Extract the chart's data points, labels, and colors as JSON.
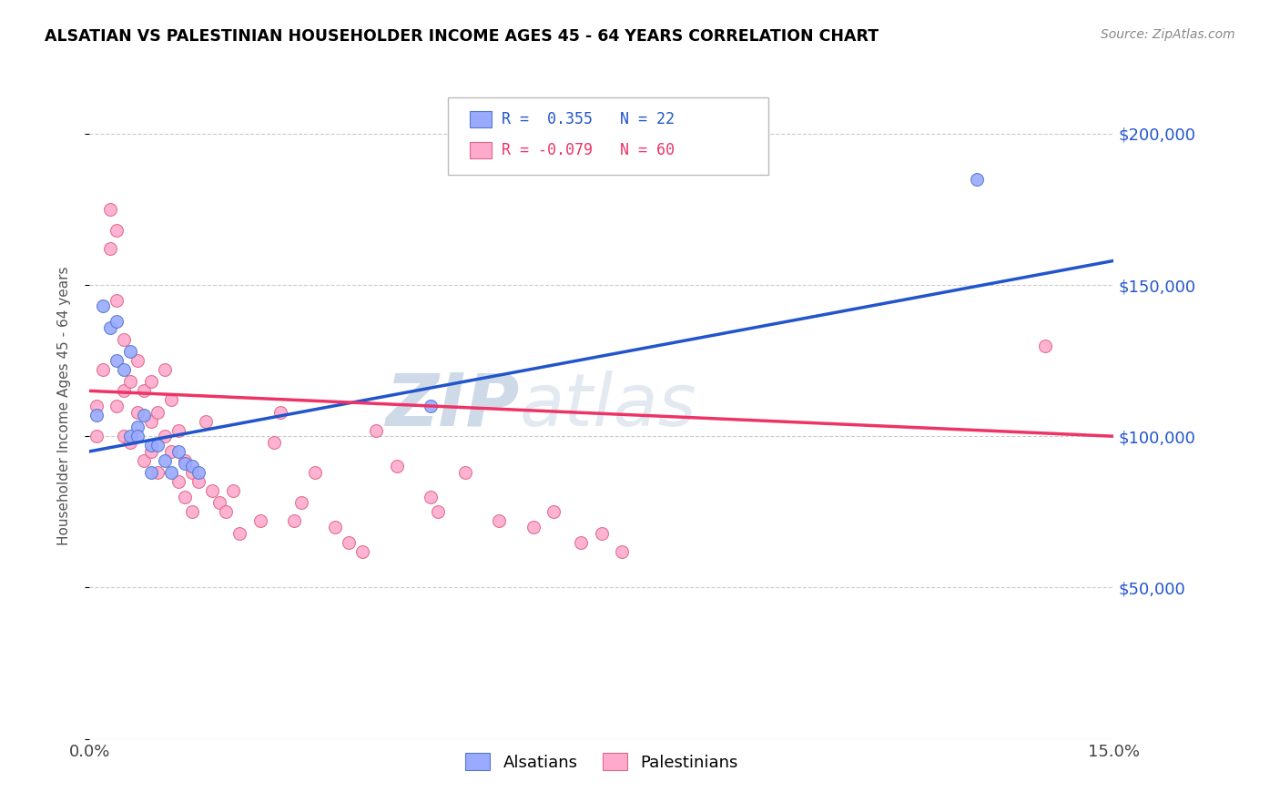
{
  "title": "ALSATIAN VS PALESTINIAN HOUSEHOLDER INCOME AGES 45 - 64 YEARS CORRELATION CHART",
  "source": "Source: ZipAtlas.com",
  "ylabel": "Householder Income Ages 45 - 64 years",
  "xlim": [
    0.0,
    0.15
  ],
  "ylim": [
    0,
    220000
  ],
  "yticks": [
    0,
    50000,
    100000,
    150000,
    200000
  ],
  "ytick_labels": [
    "",
    "$50,000",
    "$100,000",
    "$150,000",
    "$200,000"
  ],
  "xticks": [
    0.0,
    0.15
  ],
  "xtick_labels": [
    "0.0%",
    "15.0%"
  ],
  "alsatian_color": "#99aaff",
  "alsatian_edge_color": "#5577cc",
  "palestinian_color": "#ffaacc",
  "palestinian_edge_color": "#dd6688",
  "regression_blue": "#2255cc",
  "regression_pink": "#ee3366",
  "watermark_color": "#c5d4e8",
  "legend_line1": "R =  0.355   N = 22",
  "legend_line2": "R = -0.079   N = 60",
  "blue_line_y0": 95000,
  "blue_line_y1": 158000,
  "pink_line_y0": 115000,
  "pink_line_y1": 100000,
  "alsatian_x": [
    0.001,
    0.002,
    0.003,
    0.004,
    0.004,
    0.005,
    0.006,
    0.006,
    0.007,
    0.007,
    0.008,
    0.009,
    0.009,
    0.01,
    0.011,
    0.012,
    0.013,
    0.014,
    0.015,
    0.016,
    0.05,
    0.13
  ],
  "alsatian_y": [
    107000,
    143000,
    136000,
    138000,
    125000,
    122000,
    128000,
    100000,
    103000,
    100000,
    107000,
    97000,
    88000,
    97000,
    92000,
    88000,
    95000,
    91000,
    90000,
    88000,
    110000,
    185000
  ],
  "palestinian_x": [
    0.001,
    0.001,
    0.002,
    0.003,
    0.003,
    0.004,
    0.004,
    0.004,
    0.005,
    0.005,
    0.005,
    0.006,
    0.006,
    0.007,
    0.007,
    0.008,
    0.008,
    0.009,
    0.009,
    0.009,
    0.01,
    0.01,
    0.011,
    0.011,
    0.012,
    0.012,
    0.013,
    0.013,
    0.014,
    0.014,
    0.015,
    0.015,
    0.016,
    0.017,
    0.018,
    0.019,
    0.02,
    0.021,
    0.022,
    0.025,
    0.027,
    0.028,
    0.03,
    0.031,
    0.033,
    0.036,
    0.038,
    0.04,
    0.042,
    0.045,
    0.05,
    0.051,
    0.055,
    0.06,
    0.065,
    0.068,
    0.072,
    0.075,
    0.078,
    0.14
  ],
  "palestinian_y": [
    110000,
    100000,
    122000,
    175000,
    162000,
    168000,
    145000,
    110000,
    132000,
    115000,
    100000,
    118000,
    98000,
    125000,
    108000,
    115000,
    92000,
    118000,
    105000,
    95000,
    108000,
    88000,
    122000,
    100000,
    112000,
    95000,
    102000,
    85000,
    92000,
    80000,
    88000,
    75000,
    85000,
    105000,
    82000,
    78000,
    75000,
    82000,
    68000,
    72000,
    98000,
    108000,
    72000,
    78000,
    88000,
    70000,
    65000,
    62000,
    102000,
    90000,
    80000,
    75000,
    88000,
    72000,
    70000,
    75000,
    65000,
    68000,
    62000,
    130000
  ],
  "marker_size": 100
}
